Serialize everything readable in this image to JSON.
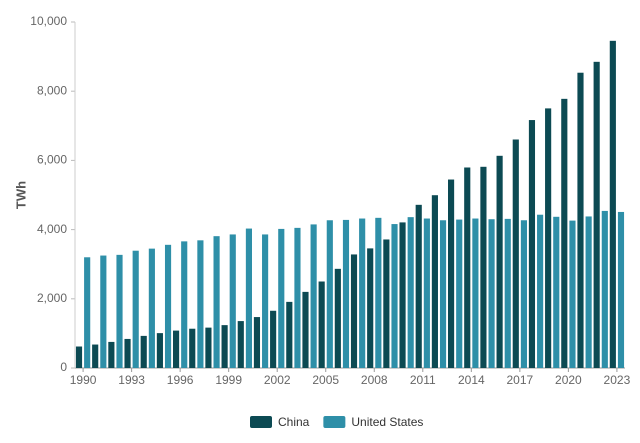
{
  "chart_data": {
    "type": "bar",
    "y_label": "TWh",
    "categories": [
      "1990",
      null,
      null,
      "1993",
      null,
      null,
      "1996",
      null,
      null,
      "1999",
      null,
      null,
      "2002",
      null,
      null,
      "2005",
      null,
      null,
      "2008",
      null,
      null,
      "2011",
      null,
      null,
      "2014",
      null,
      null,
      "2017",
      null,
      null,
      "2020",
      null,
      null,
      "2023"
    ],
    "series": [
      {
        "name": "China",
        "color": "#0c4a53",
        "values": [
          621,
          678,
          754,
          840,
          928,
          1008,
          1081,
          1135,
          1167,
          1239,
          1356,
          1472,
          1654,
          1911,
          2200,
          2500,
          2866,
          3282,
          3457,
          3715,
          4208,
          4716,
          4994,
          5447,
          5795,
          5815,
          6133,
          6604,
          7166,
          7503,
          7779,
          8534,
          8849,
          9456
        ]
      },
      {
        "name": "United States",
        "color": "#2e8fa8",
        "values": [
          3200,
          3250,
          3270,
          3390,
          3450,
          3560,
          3660,
          3690,
          3810,
          3860,
          4030,
          3860,
          4020,
          4050,
          4150,
          4270,
          4280,
          4320,
          4340,
          4160,
          4360,
          4320,
          4270,
          4290,
          4320,
          4300,
          4310,
          4270,
          4430,
          4370,
          4260,
          4380,
          4540,
          4510
        ]
      }
    ],
    "ylim": [
      0,
      10000
    ],
    "yticks": [
      0,
      {
        "value": 2000,
        "label": "2,000"
      },
      {
        "value": 4000,
        "label": "4,000"
      },
      {
        "value": 6000,
        "label": "6,000"
      },
      {
        "value": 8000,
        "label": "8,000"
      },
      {
        "value": 10000,
        "label": "10,000"
      }
    ],
    "grid": false,
    "legend": "bottom"
  }
}
